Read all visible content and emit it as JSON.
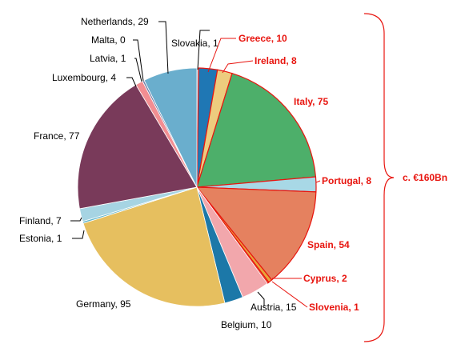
{
  "chart_data": {
    "type": "pie",
    "title": "",
    "slices": [
      {
        "label": "Slovakia",
        "value": 1,
        "color": "#aab9c8",
        "highlight": false
      },
      {
        "label": "Greece",
        "value": 10,
        "color": "#1f77b4",
        "highlight": true
      },
      {
        "label": "Ireland",
        "value": 8,
        "color": "#edcc7e",
        "highlight": true
      },
      {
        "label": "Italy",
        "value": 75,
        "color": "#4daf6a",
        "highlight": true
      },
      {
        "label": "Portugal",
        "value": 8,
        "color": "#a8d8e6",
        "highlight": true
      },
      {
        "label": "Spain",
        "value": 54,
        "color": "#e5815f",
        "highlight": true
      },
      {
        "label": "Cyprus",
        "value": 2,
        "color": "#e8a33b",
        "highlight": true
      },
      {
        "label": "Slovenia",
        "value": 1,
        "color": "#e84b3c",
        "highlight": true
      },
      {
        "label": "Austria",
        "value": 15,
        "color": "#f2a7ac",
        "highlight": false
      },
      {
        "label": "Belgium",
        "value": 10,
        "color": "#1c78a8",
        "highlight": false
      },
      {
        "label": "Germany",
        "value": 95,
        "color": "#e6bf5f",
        "highlight": false
      },
      {
        "label": "Estonia",
        "value": 1,
        "color": "#5fb5c9",
        "highlight": false
      },
      {
        "label": "Finland",
        "value": 7,
        "color": "#a6d4e3",
        "highlight": false
      },
      {
        "label": "France",
        "value": 77,
        "color": "#793a5a",
        "highlight": false
      },
      {
        "label": "Luxembourg",
        "value": 4,
        "color": "#f28e92",
        "highlight": false
      },
      {
        "label": "Latvia",
        "value": 1,
        "color": "#6e7fa8",
        "highlight": false
      },
      {
        "label": "Malta",
        "value": 0,
        "color": "#c9a36e",
        "highlight": false
      },
      {
        "label": "Netherlands",
        "value": 29,
        "color": "#6aaecd",
        "highlight": false
      }
    ],
    "bracket_label": "c. €160Bn",
    "legend": "none"
  },
  "colors": {
    "highlight_text": "#e8150f",
    "highlight_outline": "#e8150f",
    "label_text": "#000000"
  }
}
